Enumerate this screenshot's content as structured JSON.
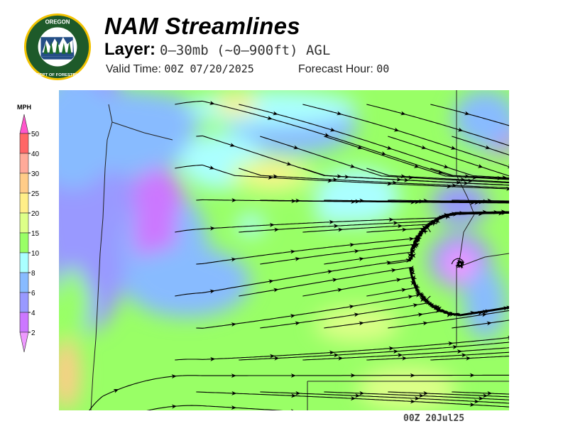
{
  "header": {
    "title": "NAM Streamlines",
    "layer_label": "Layer:",
    "layer_value": "0–30mb (~0–900ft) AGL",
    "valid_label": "Valid Time:",
    "valid_value": "00Z 07/20/2025",
    "forecast_label": "Forecast Hour:",
    "forecast_value": "00"
  },
  "logo": {
    "text_top": "OREGON",
    "text_bottom": "DEPARTMENT OF FORESTRY",
    "colors": {
      "ring": "#1e5a2a",
      "border": "#f2c200"
    }
  },
  "colorbar": {
    "unit": "MPH",
    "ticks": [
      "50",
      "40",
      "30",
      "25",
      "20",
      "15",
      "10",
      "8",
      "6",
      "4",
      "2"
    ],
    "colors": [
      "#ff55cc",
      "#ff6666",
      "#ffaa99",
      "#ffcc88",
      "#ffee88",
      "#ddff88",
      "#99ff66",
      "#aaffff",
      "#88bbff",
      "#9999ff",
      "#cc77ff",
      "#ee99ff"
    ]
  },
  "map": {
    "field": "wind speed streamlines",
    "base_color": "#99ff66"
  },
  "footer": {
    "stamp": "00Z  20Jul25"
  }
}
